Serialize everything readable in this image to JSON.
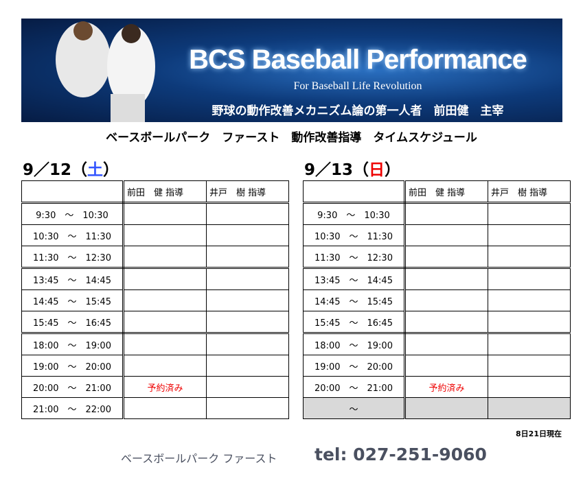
{
  "banner": {
    "title": "BCS Baseball Performance",
    "subtitle": "For Baseball Life Revolution",
    "tagline": "野球の動作改善メカニズム論の第一人者　前田健　主宰"
  },
  "heading": "ベースボールパーク　ファースト　動作改善指導　タイムスケジュール",
  "columns": [
    "前田　健 指導",
    "井戸　樹 指導"
  ],
  "days": [
    {
      "date": "9／12（",
      "weekday": "土",
      "close": "）",
      "weekday_color": "#3355ff",
      "rows": [
        [
          "9:30　～　10:30",
          "",
          ""
        ],
        [
          "10:30　～　11:30",
          "",
          ""
        ],
        [
          "11:30　～　12:30",
          "",
          ""
        ],
        [
          "13:45　～　14:45",
          "",
          ""
        ],
        [
          "14:45　～　15:45",
          "",
          ""
        ],
        [
          "15:45　～　16:45",
          "",
          ""
        ],
        [
          "18:00　～　19:00",
          "",
          ""
        ],
        [
          "19:00　～　20:00",
          "",
          ""
        ],
        [
          "20:00　～　21:00",
          "予約済み",
          ""
        ],
        [
          "21:00　～　22:00",
          "",
          ""
        ]
      ]
    },
    {
      "date": "9／13（",
      "weekday": "日",
      "close": "）",
      "weekday_color": "#e00000",
      "rows": [
        [
          "9:30　～　10:30",
          "",
          ""
        ],
        [
          "10:30　～　11:30",
          "",
          ""
        ],
        [
          "11:30　～　12:30",
          "",
          ""
        ],
        [
          "13:45　～　14:45",
          "",
          ""
        ],
        [
          "14:45　～　15:45",
          "",
          ""
        ],
        [
          "15:45　～　16:45",
          "",
          ""
        ],
        [
          "18:00　～　19:00",
          "",
          ""
        ],
        [
          "19:00　～　20:00",
          "",
          ""
        ],
        [
          "20:00　～　21:00",
          "予約済み",
          ""
        ],
        [
          "～",
          "",
          ""
        ]
      ]
    }
  ],
  "as_of": "8日21日現在",
  "footer": {
    "name": "ベースボールパーク ファースト",
    "tel": "tel: 027-251-9060"
  }
}
